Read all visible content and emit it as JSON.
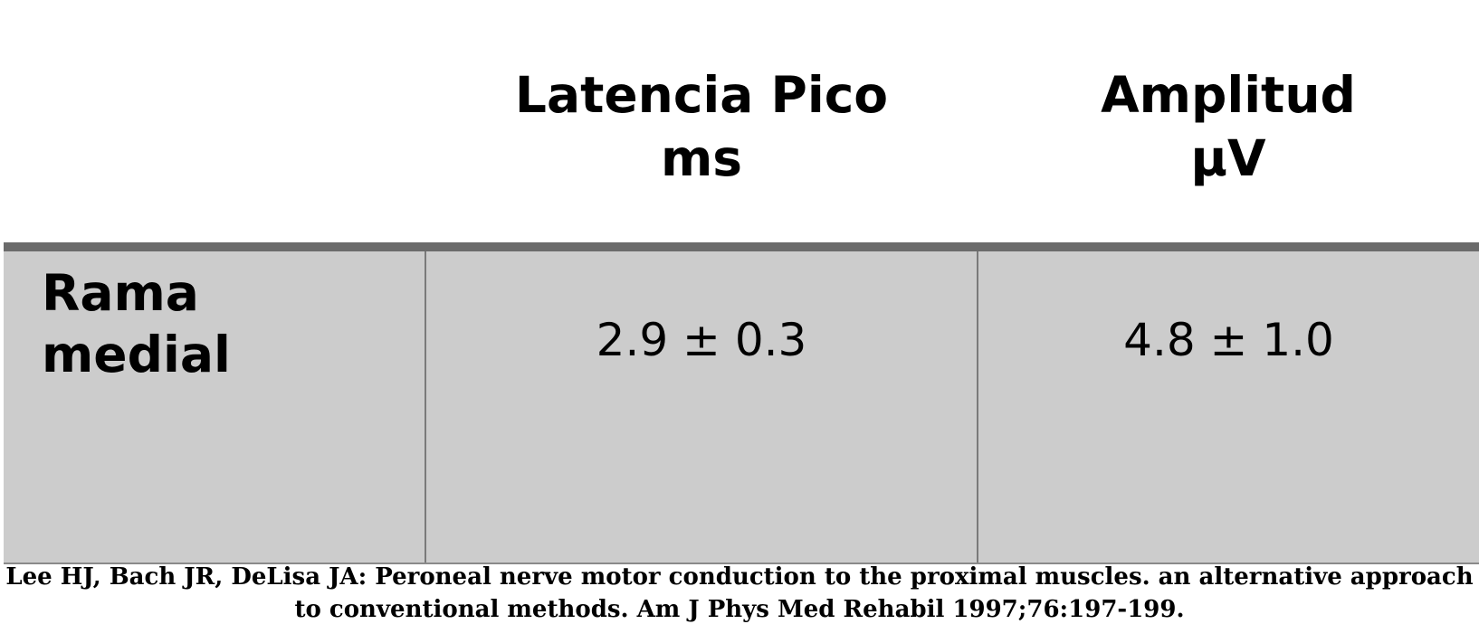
{
  "table": {
    "headers": [
      {
        "lines": [
          "",
          ""
        ]
      },
      {
        "lines": [
          "Latencia Pico",
          "ms"
        ]
      },
      {
        "lines": [
          "Amplitud",
          "µV"
        ]
      }
    ],
    "rows": [
      {
        "label_lines": [
          "Rama",
          "medial"
        ],
        "latency": "2.9 ± 0.3",
        "amplitude": "4.8 ± 1.0"
      }
    ]
  },
  "citation": {
    "line1": "Lee HJ, Bach JR, DeLisa JA: Peroneal nerve motor conduction to the proximal muscles. an alternative approach",
    "line2": "to conventional methods. Am J Phys Med Rehabil 1997;76:197-199."
  }
}
